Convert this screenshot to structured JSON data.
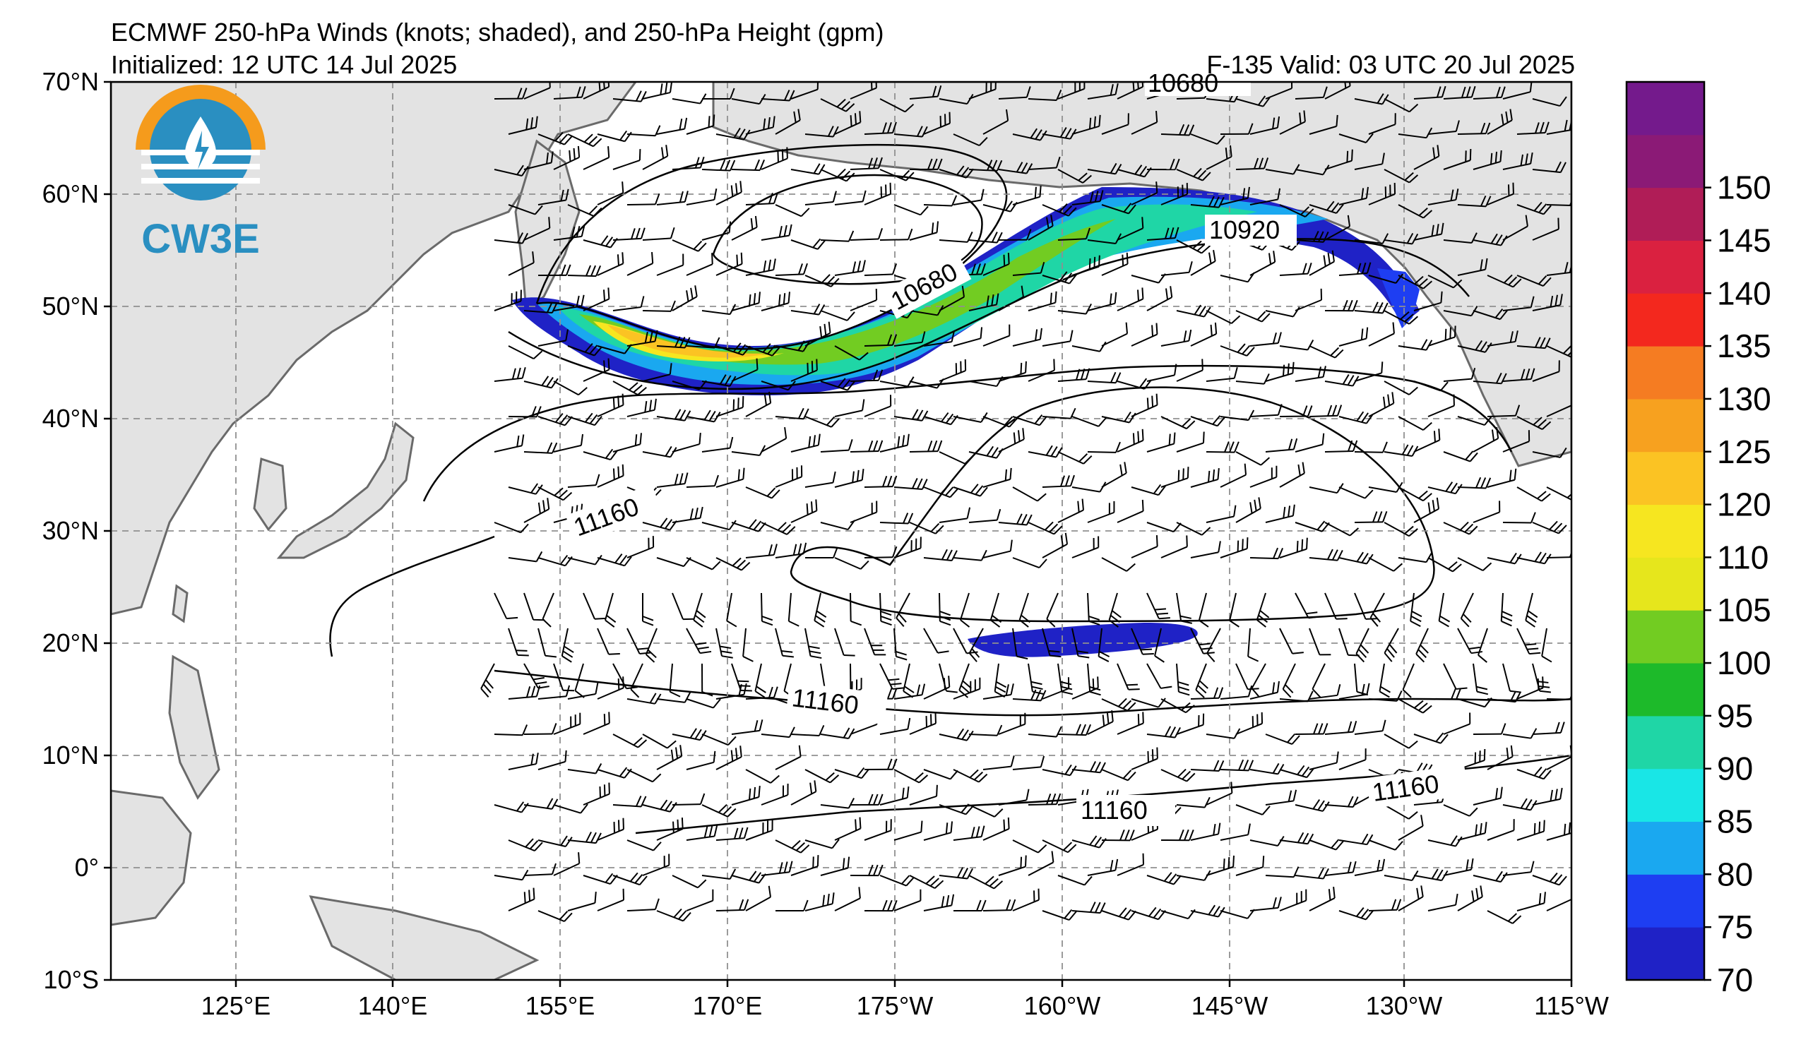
{
  "title": {
    "line1": "ECMWF 250-hPa Winds (knots; shaded), and 250-hPa Height (gpm)",
    "initialized": "Initialized: 12 UTC 14 Jul 2025",
    "valid": "F-135  Valid: 03 UTC 20 Jul 2025"
  },
  "logo": {
    "text": "CW3E",
    "icon": "cw3e-water-drop-logo"
  },
  "map": {
    "lon_ticks": [
      "125°E",
      "140°E",
      "155°E",
      "170°E",
      "175°W",
      "160°W",
      "145°W",
      "130°W",
      "115°W"
    ],
    "lat_ticks": [
      "70°N",
      "60°N",
      "50°N",
      "40°N",
      "30°N",
      "20°N",
      "10°N",
      "0°",
      "10°S"
    ],
    "extent": {
      "lon_min": "115°E",
      "lon_max": "115°W",
      "lat_min": "10°S",
      "lat_max": "70°N"
    },
    "contour_labels": [
      "10680",
      "10680",
      "10920",
      "11160",
      "11160",
      "11160",
      "11160"
    ]
  },
  "colorbar": {
    "labels": [
      "70",
      "75",
      "80",
      "85",
      "90",
      "95",
      "100",
      "105",
      "110",
      "120",
      "125",
      "130",
      "135",
      "140",
      "145",
      "150"
    ],
    "colors": [
      "#1f22c6",
      "#1e3ef2",
      "#1aa8f0",
      "#19e6e6",
      "#1fd6a6",
      "#1dba2a",
      "#72cc22",
      "#e6e61c",
      "#f6e620",
      "#fbc323",
      "#f7a11f",
      "#f57c22",
      "#f3281e",
      "#da2140",
      "#b01d57",
      "#8b1a76",
      "#741a8c"
    ]
  }
}
